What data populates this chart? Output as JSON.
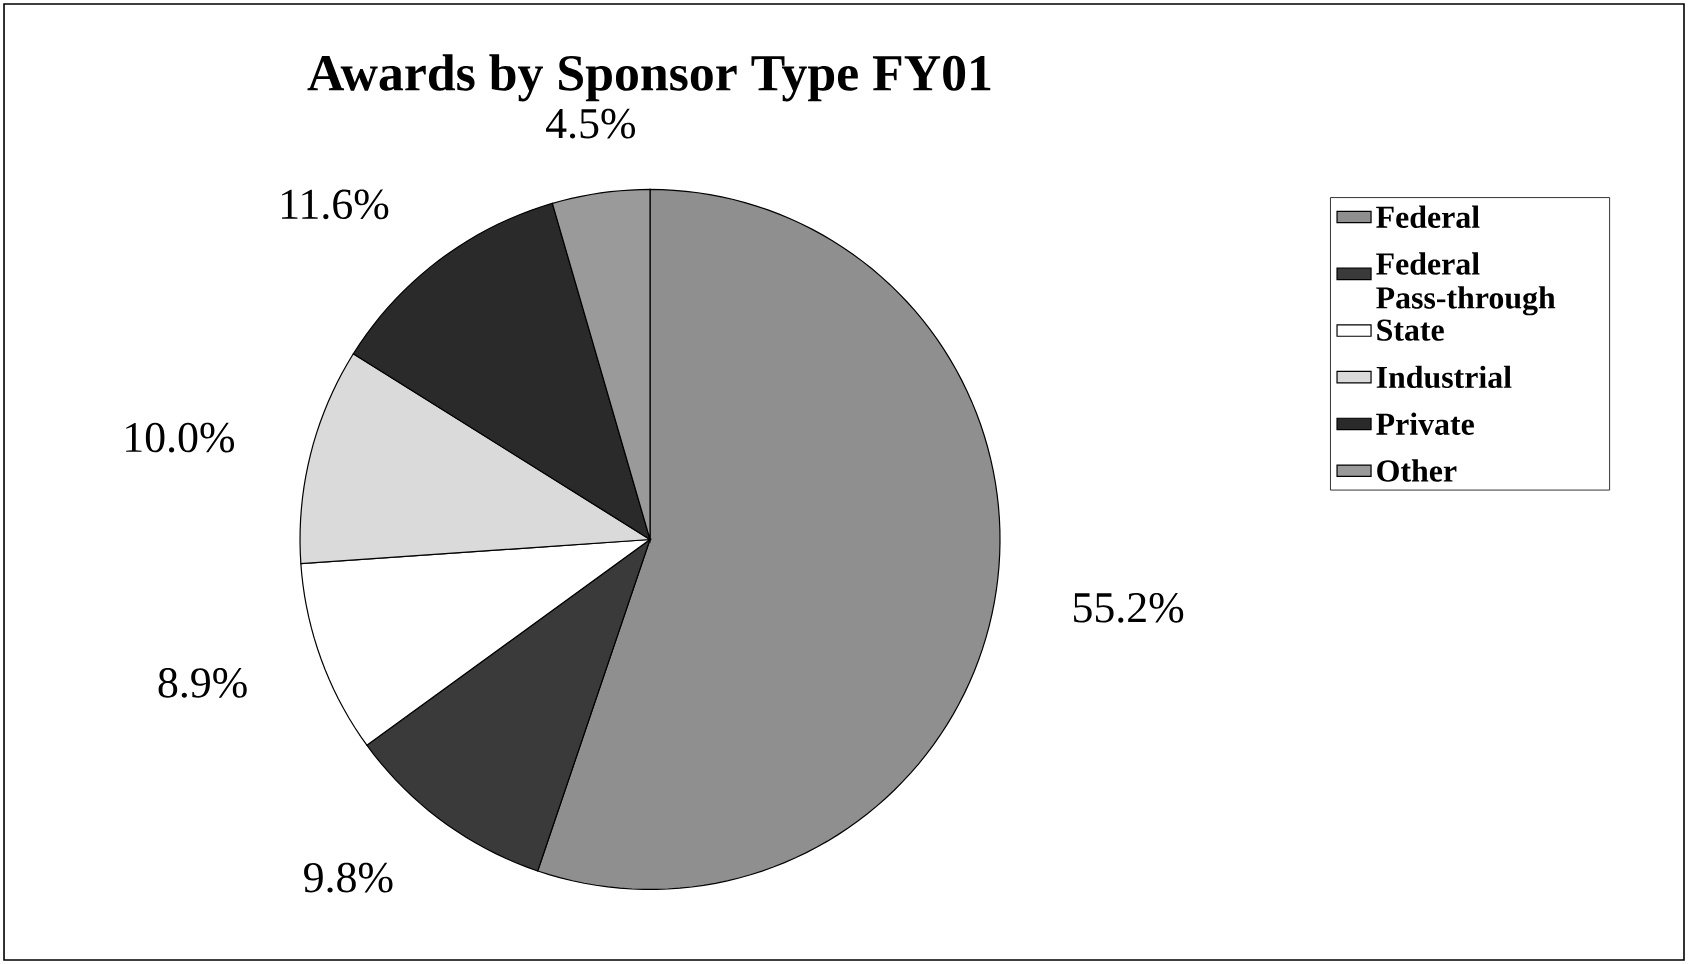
{
  "chart_data": {
    "type": "pie",
    "title": "Awards by Sponsor Type FY01",
    "categories": [
      "Federal",
      "Federal Pass-through",
      "State",
      "Industrial",
      "Private",
      "Other"
    ],
    "values": [
      55.2,
      9.8,
      8.9,
      10.0,
      11.6,
      4.5
    ],
    "colors": [
      "#8f8f8f",
      "#3a3a3a",
      "#ffffff",
      "#dadada",
      "#2a2a2a",
      "#9a9a9a"
    ],
    "value_labels": [
      "55.2%",
      "9.8%",
      "8.9%",
      "10.0%",
      "11.6%",
      "4.5%"
    ],
    "legend": "right"
  }
}
